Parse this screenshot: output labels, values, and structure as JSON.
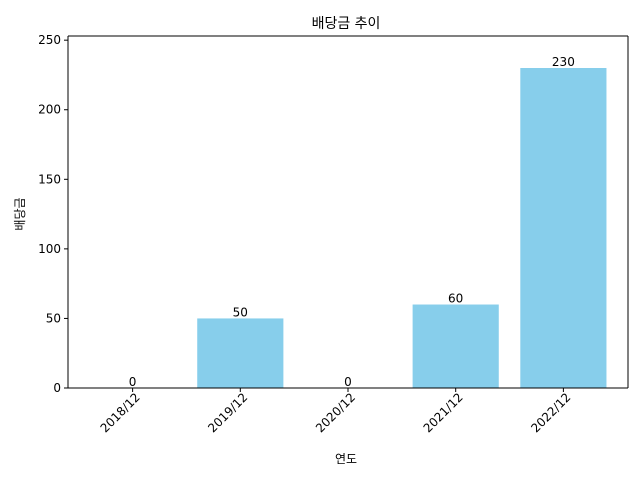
{
  "chart_data": {
    "type": "bar",
    "title": "배당금 추이",
    "xlabel": "연도",
    "ylabel": "배당금",
    "categories": [
      "2018/12",
      "2019/12",
      "2020/12",
      "2021/12",
      "2022/12"
    ],
    "values": [
      0,
      50,
      0,
      60,
      230
    ],
    "data_labels": [
      "0",
      "50",
      "0",
      "60",
      "230"
    ],
    "ylim": [
      0,
      253
    ],
    "yticks": [
      0,
      50,
      100,
      150,
      200,
      250
    ],
    "bar_color": "#87CEEB",
    "grid": false,
    "legend": "none"
  }
}
